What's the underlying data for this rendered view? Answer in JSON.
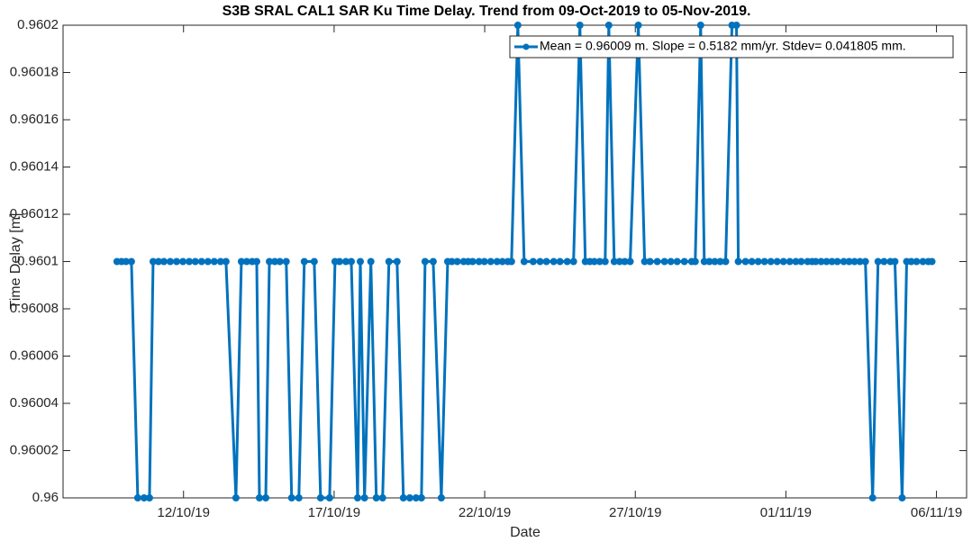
{
  "chart_data": {
    "type": "line",
    "title": "S3B SRAL CAL1 SAR Ku Time Delay. Trend from 09-Oct-2019 to 05-Nov-2019.",
    "x_label": "Date",
    "y_label": "Time Delay [m]",
    "x": [
      9.79,
      9.94,
      10.09,
      10.27,
      10.48,
      10.69,
      10.87,
      10.99,
      11.17,
      11.35,
      11.56,
      11.77,
      11.98,
      12.19,
      12.39,
      12.6,
      12.81,
      13.02,
      13.23,
      13.41,
      13.74,
      13.92,
      14.1,
      14.28,
      14.43,
      14.52,
      14.73,
      14.85,
      15.03,
      15.2,
      15.41,
      15.59,
      15.83,
      16.01,
      16.34,
      16.55,
      16.85,
      17.03,
      17.18,
      17.39,
      17.57,
      17.78,
      17.87,
      18.01,
      18.22,
      18.4,
      18.61,
      18.82,
      19.09,
      19.3,
      19.51,
      19.72,
      19.9,
      20.02,
      20.29,
      20.56,
      20.77,
      20.91,
      21.09,
      21.3,
      21.45,
      21.6,
      21.81,
      21.99,
      22.2,
      22.41,
      22.59,
      22.77,
      22.89,
      23.1,
      23.31,
      23.61,
      23.84,
      24.05,
      24.29,
      24.5,
      24.74,
      24.95,
      25.16,
      25.34,
      25.49,
      25.64,
      25.82,
      26.0,
      26.12,
      26.3,
      26.48,
      26.65,
      26.83,
      27.1,
      27.31,
      27.49,
      27.73,
      27.97,
      28.18,
      28.39,
      28.63,
      28.87,
      28.99,
      29.17,
      29.29,
      29.46,
      29.64,
      29.82,
      30.0,
      30.21,
      30.36,
      30.42,
      30.66,
      30.87,
      31.08,
      31.29,
      31.5,
      31.71,
      31.92,
      32.13,
      32.33,
      32.51,
      32.72,
      32.87,
      32.99,
      33.17,
      33.35,
      33.53,
      33.71,
      33.92,
      34.1,
      34.28,
      34.46,
      34.64,
      34.88,
      35.06,
      35.26,
      35.47,
      35.62,
      35.86,
      36.01,
      36.16,
      36.34,
      36.55,
      36.73,
      36.85
    ],
    "series": [
      {
        "name": "Mean = 0.96009 m. Slope = 0.5182 mm/yr. Stdev= 0.041805 mm.",
        "color": "#0072bd",
        "values": [
          0.9601,
          0.9601,
          0.9601,
          0.9601,
          0.96,
          0.96,
          0.96,
          0.9601,
          0.9601,
          0.9601,
          0.9601,
          0.9601,
          0.9601,
          0.9601,
          0.9601,
          0.9601,
          0.9601,
          0.9601,
          0.9601,
          0.9601,
          0.96,
          0.9601,
          0.9601,
          0.9601,
          0.9601,
          0.96,
          0.96,
          0.9601,
          0.9601,
          0.9601,
          0.9601,
          0.96,
          0.96,
          0.9601,
          0.9601,
          0.96,
          0.96,
          0.9601,
          0.9601,
          0.9601,
          0.9601,
          0.96,
          0.9601,
          0.96,
          0.9601,
          0.96,
          0.96,
          0.9601,
          0.9601,
          0.96,
          0.96,
          0.96,
          0.96,
          0.9601,
          0.9601,
          0.96,
          0.9601,
          0.9601,
          0.9601,
          0.9601,
          0.9601,
          0.9601,
          0.9601,
          0.9601,
          0.9601,
          0.9601,
          0.9601,
          0.9601,
          0.9601,
          0.9602,
          0.9601,
          0.9601,
          0.9601,
          0.9601,
          0.9601,
          0.9601,
          0.9601,
          0.9601,
          0.9602,
          0.9601,
          0.9601,
          0.9601,
          0.9601,
          0.9601,
          0.9602,
          0.9601,
          0.9601,
          0.9601,
          0.9601,
          0.9602,
          0.9601,
          0.9601,
          0.9601,
          0.9601,
          0.9601,
          0.9601,
          0.9601,
          0.9601,
          0.9601,
          0.9602,
          0.9601,
          0.9601,
          0.9601,
          0.9601,
          0.9601,
          0.9602,
          0.9602,
          0.9601,
          0.9601,
          0.9601,
          0.9601,
          0.9601,
          0.9601,
          0.9601,
          0.9601,
          0.9601,
          0.9601,
          0.9601,
          0.9601,
          0.9601,
          0.9601,
          0.9601,
          0.9601,
          0.9601,
          0.9601,
          0.9601,
          0.9601,
          0.9601,
          0.9601,
          0.9601,
          0.96,
          0.9601,
          0.9601,
          0.9601,
          0.9601,
          0.96,
          0.9601,
          0.9601,
          0.9601,
          0.9601,
          0.9601,
          0.9601
        ]
      }
    ],
    "xlim": [
      8,
      38
    ],
    "xticks": [
      {
        "value": 12,
        "label": "12/10/19"
      },
      {
        "value": 17,
        "label": "17/10/19"
      },
      {
        "value": 22,
        "label": "22/10/19"
      },
      {
        "value": 27,
        "label": "27/10/19"
      },
      {
        "value": 32,
        "label": "01/11/19"
      },
      {
        "value": 37,
        "label": "06/11/19"
      }
    ],
    "ylim": [
      0.96,
      0.9602
    ],
    "yticks": [
      0.96,
      0.96002,
      0.96004,
      0.96006,
      0.96008,
      0.9601,
      0.96012,
      0.96014,
      0.96016,
      0.96018,
      0.9602
    ],
    "grid": false,
    "legend": "northeast"
  }
}
